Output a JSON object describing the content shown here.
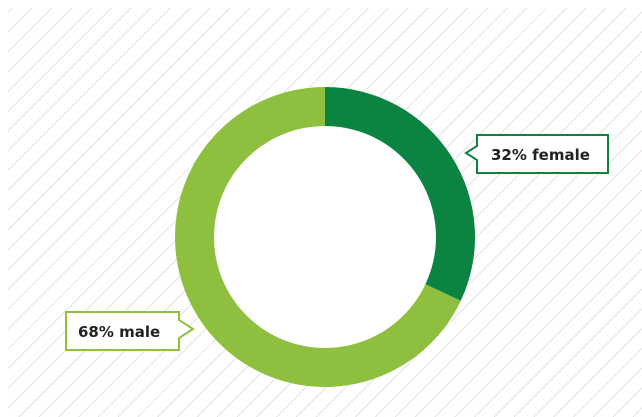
{
  "chart_data": {
    "type": "pie",
    "style": "donut",
    "start_angle": "12 o'clock, clockwise",
    "slices": [
      {
        "label": "32% female",
        "value": 32,
        "color": "#0b8441"
      },
      {
        "label": "68% male",
        "value": 68,
        "color": "#8fbf3f"
      }
    ],
    "background": {
      "pattern": "diagonal-hatch",
      "stripe_color": "#cfcfcf",
      "base_color": "#ffffff"
    }
  }
}
